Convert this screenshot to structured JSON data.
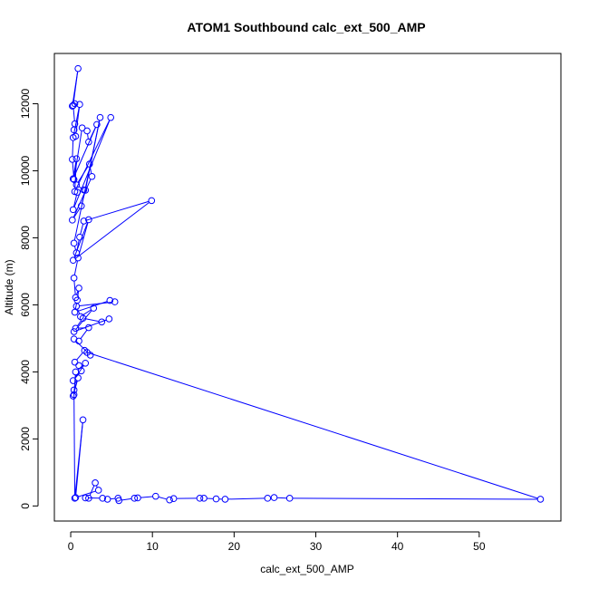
{
  "chart_data": {
    "type": "scatter",
    "title": "ATOM1 Southbound calc_ext_500_AMP",
    "xlabel": "calc_ext_500_AMP",
    "ylabel": "Altitude (m)",
    "xlim": [
      -2,
      60
    ],
    "ylim": [
      -450,
      13500
    ],
    "xticks": [
      0,
      10,
      20,
      30,
      40,
      50
    ],
    "yticks": [
      0,
      2000,
      4000,
      6000,
      8000,
      10000,
      12000
    ],
    "grid": false,
    "legend": "none",
    "series": [
      {
        "color": "#0000ff",
        "marker": "open-circle",
        "connect": true,
        "x": [
          0.5,
          0.2,
          0.9,
          0.3,
          0.5,
          0.4,
          0.6,
          1.1,
          0.3,
          0.2,
          0.4,
          1.4,
          2.0,
          2.2,
          3.2,
          0.3,
          0.7,
          0.5,
          4.9,
          0.3,
          0.8,
          1.6,
          0.7,
          2.3,
          2.6,
          0.2,
          1.3,
          1.8,
          3.6,
          0.4,
          0.7,
          1.1,
          1.6,
          9.9,
          0.3,
          2.2,
          0.9,
          0.4,
          0.6,
          1.0,
          0.8,
          0.5,
          4.8,
          5.4,
          0.7,
          1.2,
          2.8,
          0.4,
          4.7,
          3.8,
          1.5,
          0.6,
          2.2,
          1.0,
          0.4,
          2.4,
          1.7,
          0.5,
          1.0,
          1.3,
          0.3,
          1.8,
          0.6,
          0.4,
          0.3,
          0.9,
          0.4,
          0.5,
          1.5,
          0.6,
          3.4,
          3.0,
          2.2,
          1.8,
          3.9,
          4.5,
          5.8,
          5.9,
          7.8,
          8.2,
          10.4,
          12.1,
          12.6,
          15.8,
          16.3,
          17.8,
          18.9,
          24.1,
          24.9,
          26.8,
          57.5,
          2.0
        ],
        "y": [
          12000,
          11930,
          13050,
          11950,
          11400,
          11220,
          11030,
          11980,
          10990,
          10340,
          9740,
          11280,
          11190,
          10860,
          11380,
          9760,
          10360,
          9380,
          11590,
          8840,
          9360,
          9430,
          9580,
          10200,
          9830,
          8530,
          8950,
          9420,
          11590,
          7840,
          7550,
          8020,
          8500,
          9110,
          7330,
          8540,
          7400,
          6800,
          6220,
          6500,
          6140,
          5780,
          6130,
          6090,
          5960,
          5650,
          5900,
          5200,
          5580,
          5490,
          5600,
          5300,
          5320,
          4920,
          4980,
          4500,
          4640,
          4290,
          4190,
          4030,
          3740,
          4260,
          4000,
          3320,
          3280,
          3820,
          3460,
          230,
          2570,
          250,
          470,
          690,
          230,
          240,
          230,
          200,
          230,
          160,
          230,
          240,
          290,
          180,
          220,
          230,
          230,
          210,
          200,
          230,
          250,
          230,
          200,
          4580
        ]
      }
    ]
  }
}
